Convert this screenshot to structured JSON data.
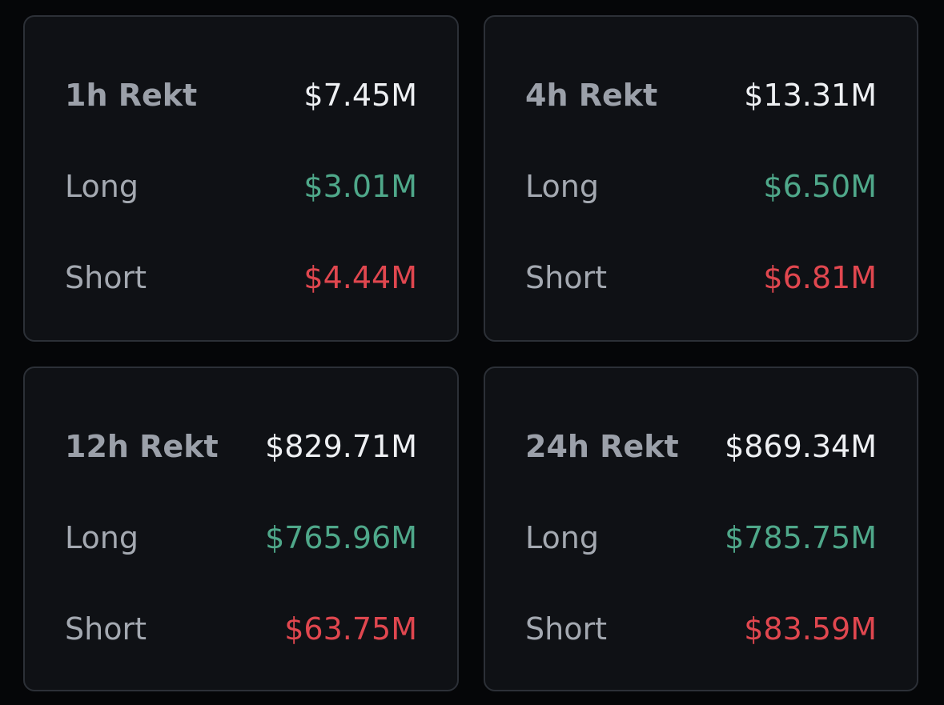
{
  "colors": {
    "background": "#050608",
    "card_background": "#0f1115",
    "card_border": "#2c3037",
    "long": "#4fa88a",
    "short": "#e0474f",
    "total": "#eef0f3",
    "label": "#a4a9b1"
  },
  "cards": [
    {
      "title": "1h Rekt",
      "total": "$7.45M",
      "long_label": "Long",
      "long_value": "$3.01M",
      "short_label": "Short",
      "short_value": "$4.44M"
    },
    {
      "title": "4h Rekt",
      "total": "$13.31M",
      "long_label": "Long",
      "long_value": "$6.50M",
      "short_label": "Short",
      "short_value": "$6.81M"
    },
    {
      "title": "12h Rekt",
      "total": "$829.71M",
      "long_label": "Long",
      "long_value": "$765.96M",
      "short_label": "Short",
      "short_value": "$63.75M"
    },
    {
      "title": "24h Rekt",
      "total": "$869.34M",
      "long_label": "Long",
      "long_value": "$785.75M",
      "short_label": "Short",
      "short_value": "$83.59M"
    }
  ]
}
